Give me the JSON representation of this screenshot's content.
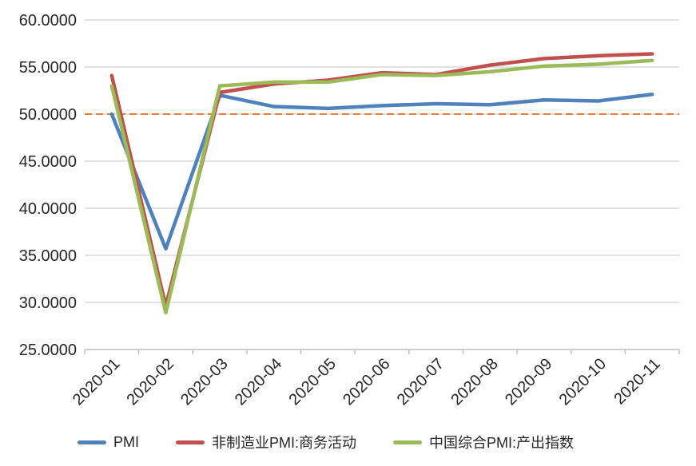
{
  "chart_data": {
    "type": "line",
    "title": "",
    "xlabel": "",
    "ylabel": "",
    "categories": [
      "2020-01",
      "2020-02",
      "2020-03",
      "2020-04",
      "2020-05",
      "2020-06",
      "2020-07",
      "2020-08",
      "2020-09",
      "2020-10",
      "2020-11"
    ],
    "series": [
      {
        "name": "PMI",
        "color": "#4F81BD",
        "values": [
          50.0,
          35.7,
          52.0,
          50.8,
          50.6,
          50.9,
          51.1,
          51.0,
          51.5,
          51.4,
          52.1
        ]
      },
      {
        "name": "非制造业PMI:商务活动",
        "color": "#C0504D",
        "values": [
          54.1,
          29.6,
          52.3,
          53.2,
          53.6,
          54.4,
          54.2,
          55.2,
          55.9,
          56.2,
          56.4
        ]
      },
      {
        "name": "中国综合PMI:产出指数",
        "color": "#9BBB59",
        "values": [
          53.0,
          28.9,
          53.0,
          53.4,
          53.4,
          54.2,
          54.1,
          54.5,
          55.1,
          55.3,
          55.7
        ]
      }
    ],
    "ylim": [
      25,
      60
    ],
    "yticks": [
      {
        "value": 60,
        "label": "60.0000"
      },
      {
        "value": 55,
        "label": "55.0000"
      },
      {
        "value": 50,
        "label": "50.0000"
      },
      {
        "value": 45,
        "label": "45.0000"
      },
      {
        "value": 40,
        "label": "40.0000"
      },
      {
        "value": 35,
        "label": "35.0000"
      },
      {
        "value": 30,
        "label": "30.0000"
      },
      {
        "value": 25,
        "label": "25.0000"
      }
    ],
    "reference_line": {
      "value": 50,
      "style": "dashed",
      "color": "#ED7D31"
    },
    "grid": true,
    "legend_position": "bottom",
    "colors": {
      "gridline": "#D9D9D9",
      "axis": "#BFBFBF",
      "text": "#262626",
      "background": "#FFFFFF"
    }
  }
}
